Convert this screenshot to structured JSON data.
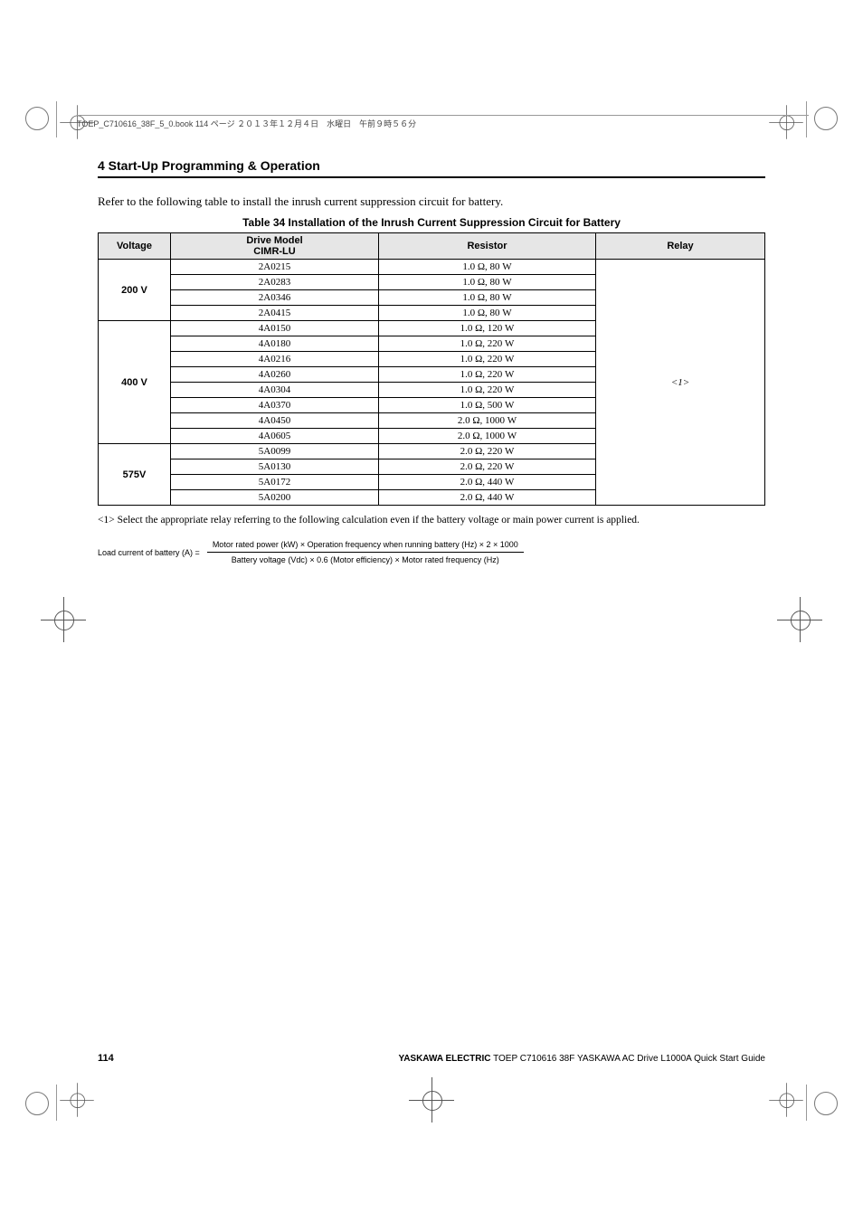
{
  "crop": {
    "header_text": "TOEP_C710616_38F_5_0.book  114 ページ  ２０１３年１２月４日　水曜日　午前９時５６分"
  },
  "section_heading": "4  Start-Up Programming & Operation",
  "intro_text": "Refer to the following table to install the inrush current suppression circuit for battery.",
  "table": {
    "caption": "Table 34  Installation of the Inrush Current Suppression Circuit for Battery",
    "col_widths": [
      "80px",
      "230px",
      "240px",
      "auto"
    ],
    "headers": {
      "voltage": "Voltage",
      "model_line1": "Drive Model",
      "model_line2": "CIMR-LU",
      "resistor": "Resistor",
      "relay": "Relay"
    },
    "groups": [
      {
        "voltage": "200 V",
        "rows": [
          {
            "model": "2A0215",
            "resistor": "1.0 Ω, 80 W"
          },
          {
            "model": "2A0283",
            "resistor": "1.0 Ω, 80 W"
          },
          {
            "model": "2A0346",
            "resistor": "1.0 Ω, 80 W"
          },
          {
            "model": "2A0415",
            "resistor": "1.0 Ω, 80 W"
          }
        ]
      },
      {
        "voltage": "400 V",
        "rows": [
          {
            "model": "4A0150",
            "resistor": "1.0 Ω, 120 W"
          },
          {
            "model": "4A0180",
            "resistor": "1.0 Ω, 220 W"
          },
          {
            "model": "4A0216",
            "resistor": "1.0 Ω, 220 W"
          },
          {
            "model": "4A0260",
            "resistor": "1.0 Ω, 220 W"
          },
          {
            "model": "4A0304",
            "resistor": "1.0 Ω, 220 W"
          },
          {
            "model": "4A0370",
            "resistor": "1.0 Ω, 500 W"
          },
          {
            "model": "4A0450",
            "resistor": "2.0 Ω, 1000 W"
          },
          {
            "model": "4A0605",
            "resistor": "2.0 Ω, 1000 W"
          }
        ]
      },
      {
        "voltage": "575V",
        "rows": [
          {
            "model": "5A0099",
            "resistor": "2.0 Ω, 220 W"
          },
          {
            "model": "5A0130",
            "resistor": "2.0 Ω, 220 W"
          },
          {
            "model": "5A0172",
            "resistor": "2.0 Ω, 440 W"
          },
          {
            "model": "5A0200",
            "resistor": "2.0 Ω, 440 W"
          }
        ]
      }
    ],
    "relay_marker": "<1>"
  },
  "footnote": "<1> Select the appropriate relay referring to the following calculation even if the battery voltage or main power current is applied.",
  "formula": {
    "lhs": "Load current of battery (A) =",
    "numerator": "Motor rated power (kW) × Operation frequency when running battery (Hz) × 2 × 1000",
    "denominator": "Battery voltage (Vdc) × 0.6 (Motor efficiency) × Motor rated frequency (Hz)"
  },
  "footer": {
    "page_number": "114",
    "text_bold": "YASKAWA ELECTRIC",
    "text_rest": " TOEP C710616 38F YASKAWA AC Drive L1000A Quick Start Guide"
  }
}
